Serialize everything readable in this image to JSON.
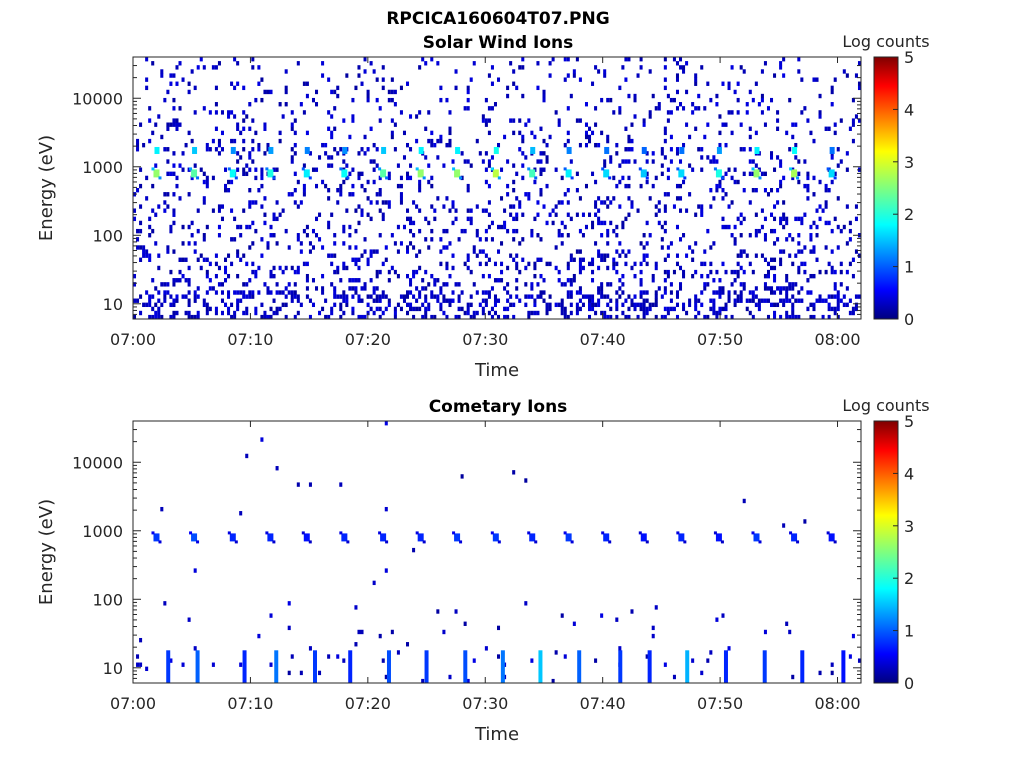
{
  "figure": {
    "title": "RPCICA160604T07.PNG"
  },
  "colorbar": {
    "label": "Log counts",
    "ticks": [
      "0",
      "1",
      "2",
      "3",
      "4",
      "5"
    ],
    "colormap": "jet",
    "range": [
      0,
      5
    ]
  },
  "chart_data": [
    {
      "type": "heatmap",
      "title": "Solar Wind Ions",
      "xlabel": "Time",
      "ylabel": "Energy (eV)",
      "x_ticks": [
        "07:00",
        "07:10",
        "07:20",
        "07:30",
        "07:40",
        "07:50",
        "08:00"
      ],
      "x_tick_minutes": [
        0,
        10,
        20,
        30,
        40,
        50,
        60
      ],
      "xlim_minutes": [
        0,
        62
      ],
      "y_ticks": [
        "10",
        "100",
        "1000",
        "10000"
      ],
      "y_tick_values": [
        10,
        100,
        1000,
        10000
      ],
      "y_scale": "log",
      "ylim": [
        6,
        40000
      ],
      "colorbar_label": "Log counts",
      "color_range": [
        0,
        5
      ],
      "peak_energy_eV": 800,
      "peak_times_minutes": [
        2,
        5.2,
        8.5,
        11.7,
        14.8,
        18,
        21.3,
        24.5,
        27.6,
        30.9,
        34,
        37.1,
        40.3,
        43.5,
        46.7,
        49.9,
        53.1,
        56.3,
        59.5
      ],
      "peak_log_counts": [
        2.6,
        2.3,
        1.9,
        2.0,
        1.8,
        1.9,
        2.3,
        2.6,
        2.6,
        2.8,
        2.2,
        1.8,
        1.7,
        1.6,
        1.7,
        2.0,
        2.6,
        2.7,
        1.7
      ]
    },
    {
      "type": "heatmap",
      "title": "Cometary Ions",
      "xlabel": "Time",
      "ylabel": "Energy (eV)",
      "x_ticks": [
        "07:00",
        "07:10",
        "07:20",
        "07:30",
        "07:40",
        "07:50",
        "08:00"
      ],
      "x_tick_minutes": [
        0,
        10,
        20,
        30,
        40,
        50,
        60
      ],
      "xlim_minutes": [
        0,
        62
      ],
      "y_ticks": [
        "10",
        "100",
        "1000",
        "10000"
      ],
      "y_tick_values": [
        10,
        100,
        1000,
        10000
      ],
      "y_scale": "log",
      "ylim": [
        6,
        40000
      ],
      "colorbar_label": "Log counts",
      "color_range": [
        0,
        5
      ],
      "peak_energy_eV": 800,
      "peak_times_minutes": [
        2,
        5.2,
        8.5,
        11.7,
        14.8,
        18,
        21.3,
        24.5,
        27.6,
        30.9,
        34,
        37.1,
        40.3,
        43.5,
        46.7,
        49.9,
        53.1,
        56.3,
        59.5
      ],
      "peak_log_counts": [
        0.9,
        1.0,
        0.8,
        0.8,
        0.7,
        0.8,
        0.8,
        0.8,
        0.9,
        0.9,
        0.8,
        0.9,
        0.8,
        0.7,
        0.8,
        0.7,
        0.9,
        0.8,
        0.7
      ],
      "low_energy_bursts_minutes": [
        3,
        5.5,
        9.5,
        12.2,
        15.5,
        18.5,
        21.8,
        25,
        28.3,
        31.5,
        34.7,
        38,
        41.5,
        44,
        47.2,
        50.5,
        53.8,
        57,
        60.5
      ],
      "low_energy_burst_log_counts": [
        0.9,
        1.1,
        0.8,
        1.2,
        0.9,
        0.8,
        1.0,
        0.9,
        1.0,
        1.2,
        1.6,
        1.1,
        0.9,
        0.8,
        1.5,
        0.8,
        0.9,
        0.8,
        0.7
      ]
    }
  ]
}
